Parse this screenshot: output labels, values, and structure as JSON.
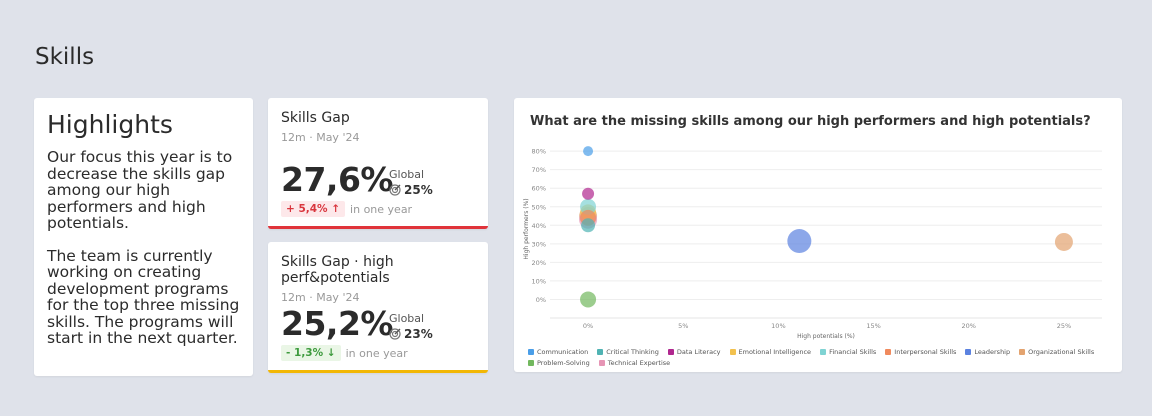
{
  "page": {
    "title": "Skills"
  },
  "highlights": {
    "title": "Highlights",
    "paragraphs": [
      "Our focus this year is to decrease the skills gap among our high performers and high potentials.",
      "The team is currently working on creating development programs for the top three missing skills. The programs will start in the next quarter."
    ]
  },
  "kpis": [
    {
      "title": "Skills Gap",
      "subtitle": "12m · May '24",
      "value": "27,6%",
      "global_label": "Global",
      "global_value": "25%",
      "delta": "+ 5,4%",
      "delta_icon": "arrow-up",
      "delta_label": "in one year",
      "accent": "#e0333a",
      "delta_color": "#d9363e",
      "delta_bg": "#fde8ea"
    },
    {
      "title": "Skills Gap · high perf&potentials",
      "subtitle": "12m · May '24",
      "value": "25,2%",
      "global_label": "Global",
      "global_value": "23%",
      "delta": "- 1,3%",
      "delta_icon": "arrow-down",
      "delta_label": "in one year",
      "accent": "#f2b705",
      "delta_color": "#3d9a3d",
      "delta_bg": "#eaf6e6"
    }
  ],
  "chart_data": {
    "type": "scatter",
    "title": "What are the missing skills among our high performers and high potentials?",
    "xlabel": "High potentials (%)",
    "ylabel": "High performers (%)",
    "xlim": [
      -2,
      27
    ],
    "ylim": [
      -10,
      86
    ],
    "xticks": [
      "0%",
      "5%",
      "10%",
      "15%",
      "20%",
      "25%"
    ],
    "xtick_values": [
      0,
      5,
      10,
      15,
      20,
      25
    ],
    "yticks": [
      "0%",
      "10%",
      "20%",
      "30%",
      "40%",
      "50%",
      "60%",
      "70%",
      "80%"
    ],
    "ytick_values": [
      0,
      10,
      20,
      30,
      40,
      50,
      60,
      70,
      80
    ],
    "grid": true,
    "legend": "bottom",
    "series": [
      {
        "name": "Communication",
        "color": "#4a9ee8",
        "points": [
          {
            "x": 0,
            "y": 80,
            "size": 5
          }
        ]
      },
      {
        "name": "Critical Thinking",
        "color": "#4fb3b3",
        "points": [
          {
            "x": 0,
            "y": 40,
            "size": 7
          }
        ]
      },
      {
        "name": "Data Literacy",
        "color": "#b0278f",
        "points": [
          {
            "x": 0,
            "y": 57,
            "size": 6
          }
        ]
      },
      {
        "name": "Emotional Intelligence",
        "color": "#f2c14e",
        "points": [
          {
            "x": 0,
            "y": 47,
            "size": 8
          }
        ]
      },
      {
        "name": "Financial Skills",
        "color": "#7fd3d3",
        "points": [
          {
            "x": 0,
            "y": 50,
            "size": 8
          }
        ]
      },
      {
        "name": "Interpersonal Skills",
        "color": "#f08a5d",
        "points": [
          {
            "x": 0,
            "y": 44,
            "size": 8
          }
        ]
      },
      {
        "name": "Leadership",
        "color": "#5b82e0",
        "points": [
          {
            "x": 11.1,
            "y": 31.5,
            "size": 12
          }
        ]
      },
      {
        "name": "Organizational Skills",
        "color": "#e3a36f",
        "points": [
          {
            "x": 0,
            "y": 45,
            "size": 9
          },
          {
            "x": 25,
            "y": 31,
            "size": 9
          }
        ]
      },
      {
        "name": "Problem-Solving",
        "color": "#72b85e",
        "points": [
          {
            "x": 0,
            "y": 0,
            "size": 8
          }
        ]
      },
      {
        "name": "Technical Expertise",
        "color": "#e695b5",
        "points": [
          {
            "x": 0,
            "y": 43,
            "size": 9
          }
        ]
      }
    ]
  }
}
